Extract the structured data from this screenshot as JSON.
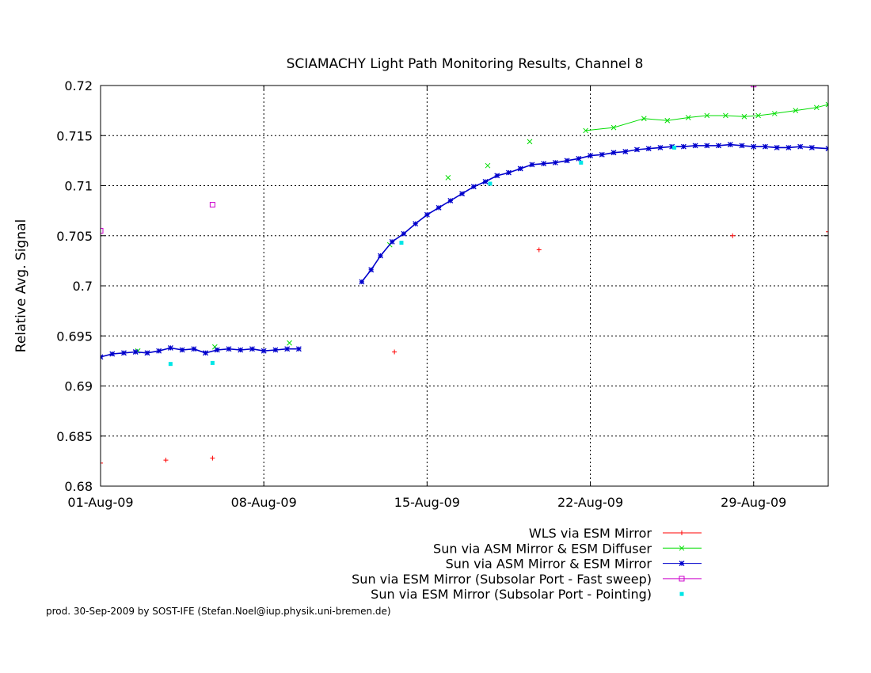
{
  "chart_data": {
    "type": "line",
    "title": "SCIAMACHY Light Path Monitoring Results, Channel 8",
    "ylabel": "Relative Avg. Signal",
    "xlabel": "",
    "x_unit": "day of Aug-2009",
    "xlim": [
      1,
      32.2
    ],
    "ylim": [
      0.68,
      0.72
    ],
    "grid": true,
    "legend_position": "bottom-right",
    "x_ticks": [
      {
        "value": 1,
        "label": "01-Aug-09"
      },
      {
        "value": 8,
        "label": "08-Aug-09"
      },
      {
        "value": 15,
        "label": "15-Aug-09"
      },
      {
        "value": 22,
        "label": "22-Aug-09"
      },
      {
        "value": 29,
        "label": "29-Aug-09"
      }
    ],
    "y_ticks": [
      {
        "value": 0.68,
        "label": "0.68"
      },
      {
        "value": 0.685,
        "label": "0.685"
      },
      {
        "value": 0.69,
        "label": "0.69"
      },
      {
        "value": 0.695,
        "label": "0.695"
      },
      {
        "value": 0.7,
        "label": "0.7"
      },
      {
        "value": 0.705,
        "label": "0.705"
      },
      {
        "value": 0.71,
        "label": "0.71"
      },
      {
        "value": 0.715,
        "label": "0.715"
      },
      {
        "value": 0.72,
        "label": "0.72"
      }
    ],
    "series": [
      {
        "name": "WLS via ESM Mirror",
        "color": "#ff0000",
        "marker": "plus",
        "style": "line",
        "points": [
          [
            1,
            0.6823
          ],
          [
            3.8,
            0.6826
          ],
          [
            5.8,
            0.6828
          ],
          [
            13.6,
            0.6934
          ],
          [
            19.8,
            0.7036
          ],
          [
            28.1,
            0.705
          ],
          [
            32.2,
            0.7054
          ]
        ]
      },
      {
        "name": "Sun via ASM Mirror & ESM Diffuser",
        "color": "#00dd00",
        "marker": "x",
        "style": "line",
        "points": [
          [
            2.6,
            0.6935
          ],
          [
            5.9,
            0.6939
          ],
          [
            9.1,
            0.6943
          ],
          [
            13.4,
            0.7041
          ],
          [
            15.9,
            0.7108
          ],
          [
            17.6,
            0.712
          ],
          [
            19.4,
            0.7144
          ],
          [
            21.8,
            0.7155
          ],
          [
            23.0,
            0.7158
          ],
          [
            24.3,
            0.7167
          ],
          [
            25.3,
            0.7165
          ],
          [
            26.2,
            0.7168
          ],
          [
            27.0,
            0.717
          ],
          [
            27.8,
            0.717
          ],
          [
            28.6,
            0.7169
          ],
          [
            29.2,
            0.717
          ],
          [
            29.9,
            0.7172
          ],
          [
            30.8,
            0.7175
          ],
          [
            31.7,
            0.7178
          ],
          [
            32.2,
            0.7181
          ]
        ]
      },
      {
        "name": "Sun via ASM Mirror & ESM Mirror",
        "color": "#0000cc",
        "marker": "star",
        "style": "line",
        "points": [
          [
            1.0,
            0.6929
          ],
          [
            1.5,
            0.6932
          ],
          [
            2.0,
            0.6933
          ],
          [
            2.5,
            0.6934
          ],
          [
            3.0,
            0.6933
          ],
          [
            3.5,
            0.6935
          ],
          [
            4.0,
            0.6938
          ],
          [
            4.5,
            0.6936
          ],
          [
            5.0,
            0.6937
          ],
          [
            5.5,
            0.6933
          ],
          [
            6.0,
            0.6936
          ],
          [
            6.5,
            0.6937
          ],
          [
            7.0,
            0.6936
          ],
          [
            7.5,
            0.6937
          ],
          [
            8.0,
            0.6935
          ],
          [
            8.5,
            0.6936
          ],
          [
            9.0,
            0.6937
          ],
          [
            9.5,
            0.6937
          ],
          [
            12.2,
            0.7004
          ],
          [
            12.6,
            0.7016
          ],
          [
            13.0,
            0.703
          ],
          [
            13.5,
            0.7044
          ],
          [
            14.0,
            0.7052
          ],
          [
            14.5,
            0.7062
          ],
          [
            15.0,
            0.7071
          ],
          [
            15.5,
            0.7078
          ],
          [
            16.0,
            0.7085
          ],
          [
            16.5,
            0.7092
          ],
          [
            17.0,
            0.7099
          ],
          [
            17.5,
            0.7104
          ],
          [
            18.0,
            0.711
          ],
          [
            18.5,
            0.7113
          ],
          [
            19.0,
            0.7117
          ],
          [
            19.5,
            0.7121
          ],
          [
            20.0,
            0.7122
          ],
          [
            20.5,
            0.7123
          ],
          [
            21.0,
            0.7125
          ],
          [
            21.5,
            0.7127
          ],
          [
            22.0,
            0.713
          ],
          [
            22.5,
            0.7131
          ],
          [
            23.0,
            0.7133
          ],
          [
            23.5,
            0.7134
          ],
          [
            24.0,
            0.7136
          ],
          [
            24.5,
            0.7137
          ],
          [
            25.0,
            0.7138
          ],
          [
            25.5,
            0.7139
          ],
          [
            26.0,
            0.7139
          ],
          [
            26.5,
            0.714
          ],
          [
            27.0,
            0.714
          ],
          [
            27.5,
            0.714
          ],
          [
            28.0,
            0.7141
          ],
          [
            28.5,
            0.714
          ],
          [
            29.0,
            0.7139
          ],
          [
            29.5,
            0.7139
          ],
          [
            30.0,
            0.7138
          ],
          [
            30.5,
            0.7138
          ],
          [
            31.0,
            0.7139
          ],
          [
            31.5,
            0.7138
          ],
          [
            32.2,
            0.7137
          ]
        ]
      },
      {
        "name": "Sun via ESM Mirror (Subsolar Port - Fast sweep)",
        "color": "#cc00cc",
        "marker": "square",
        "style": "line",
        "points": [
          [
            1.0,
            0.7055
          ],
          [
            5.8,
            0.7081
          ],
          [
            29.0,
            0.7201
          ]
        ]
      },
      {
        "name": "Sun via ESM Mirror (Subsolar Port - Pointing)",
        "color": "#00e6e6",
        "marker": "dot",
        "style": "points",
        "points": [
          [
            4.0,
            0.6922
          ],
          [
            5.8,
            0.6923
          ],
          [
            13.9,
            0.7043
          ],
          [
            17.7,
            0.7102
          ],
          [
            21.6,
            0.7123
          ],
          [
            25.6,
            0.7138
          ]
        ]
      }
    ],
    "footer": "prod. 30-Sep-2009 by SOST-IFE (Stefan.Noel@iup.physik.uni-bremen.de)"
  }
}
